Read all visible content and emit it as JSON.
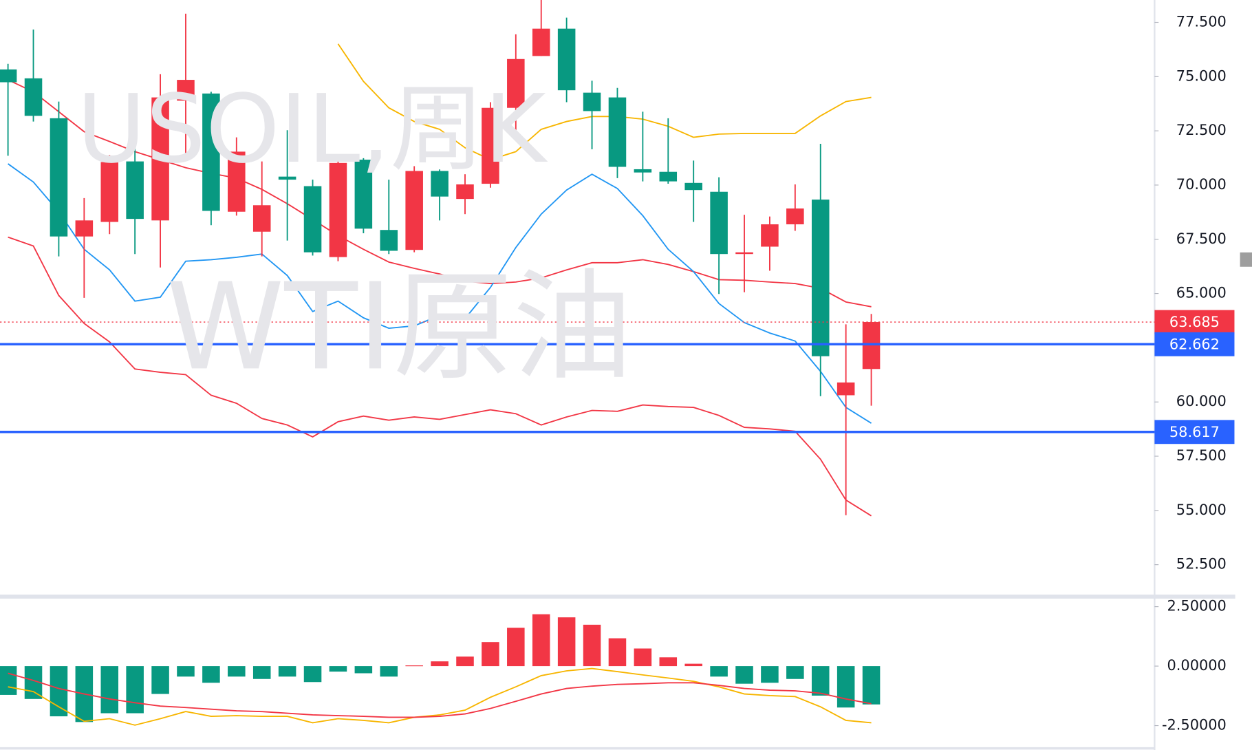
{
  "chart_data": [
    {
      "type": "candlestick",
      "watermark": [
        "USOIL,周K",
        "WTI原油"
      ],
      "open": [
        75.33,
        74.92,
        73.08,
        67.63,
        68.3,
        71.09,
        68.37,
        73.89,
        74.22,
        68.77,
        67.85,
        70.39,
        69.95,
        66.68,
        71.17,
        67.93,
        67.01,
        70.65,
        69.36,
        70.06,
        73.56,
        75.95,
        77.21,
        74.26,
        74.04,
        70.73,
        70.61,
        70.1,
        69.69,
        66.82,
        67.16,
        68.19,
        69.33,
        60.31,
        61.52
      ],
      "high": [
        75.59,
        77.17,
        73.85,
        69.4,
        71.39,
        72.2,
        75.11,
        77.9,
        74.3,
        72.2,
        71.09,
        72.53,
        70.25,
        71.35,
        71.24,
        70.25,
        70.87,
        70.72,
        70.5,
        73.82,
        76.95,
        78.53,
        77.72,
        74.81,
        74.48,
        73.38,
        73.08,
        71.13,
        70.36,
        68.63,
        68.55,
        70.03,
        71.9,
        63.58,
        64.06
      ],
      "low": [
        71.35,
        72.93,
        66.71,
        64.8,
        67.74,
        66.82,
        66.2,
        71.17,
        68.15,
        68.59,
        66.71,
        67.44,
        66.75,
        66.49,
        67.78,
        66.82,
        66.9,
        68.37,
        68.66,
        69.88,
        72.35,
        75.95,
        73.82,
        71.65,
        70.32,
        70.17,
        70.06,
        68.3,
        64.98,
        65.06,
        66.05,
        67.89,
        60.27,
        54.78,
        59.83
      ],
      "close": [
        74.74,
        73.19,
        67.63,
        68.37,
        71.06,
        68.44,
        74.04,
        74.85,
        68.81,
        71.54,
        69.07,
        70.25,
        66.9,
        71.02,
        67.99,
        66.97,
        70.65,
        69.47,
        70.03,
        73.56,
        75.81,
        77.21,
        74.37,
        73.41,
        70.84,
        70.58,
        70.17,
        69.77,
        66.82,
        66.9,
        68.19,
        68.92,
        62.11,
        60.9,
        63.685
      ],
      "up_color": "#f23645",
      "down_color": "#089981",
      "series": [
        {
          "color": "#f23645",
          "values": [
            74.85,
            74.3,
            73.38,
            72.46,
            72.01,
            71.54,
            71.17,
            70.8,
            70.54,
            70.32,
            69.8,
            69.14,
            68.41,
            67.67,
            67.04,
            66.45,
            66.16,
            65.9,
            65.57,
            65.46,
            65.53,
            65.72,
            66.09,
            66.42,
            66.42,
            66.56,
            66.34,
            66.01,
            65.64,
            65.61,
            65.53,
            65.46,
            65.24,
            64.61,
            64.39
          ]
        },
        {
          "color": "#f7b500",
          "values": [
            null,
            null,
            null,
            null,
            null,
            null,
            null,
            null,
            null,
            null,
            null,
            null,
            null,
            76.51,
            74.78,
            73.56,
            72.93,
            72.57,
            71.72,
            71.17,
            71.54,
            72.57,
            72.93,
            73.16,
            73.16,
            73.04,
            72.71,
            72.2,
            72.35,
            72.38,
            72.38,
            72.38,
            73.19,
            73.85,
            74.04
          ]
        },
        {
          "color": "#f23645",
          "values": [
            67.6,
            67.19,
            64.91,
            63.62,
            62.77,
            61.52,
            61.37,
            61.26,
            60.31,
            59.94,
            59.24,
            58.94,
            58.39,
            59.09,
            59.35,
            59.16,
            59.31,
            59.2,
            59.42,
            59.64,
            59.46,
            58.94,
            59.31,
            59.61,
            59.57,
            59.86,
            59.79,
            59.75,
            59.38,
            58.83,
            58.76,
            58.65,
            57.36,
            55.48,
            54.75
          ]
        },
        {
          "color": "#2196f3",
          "values": [
            70.98,
            70.14,
            68.77,
            67.04,
            66.09,
            64.65,
            64.83,
            66.49,
            66.56,
            66.67,
            66.82,
            65.83,
            64.17,
            64.65,
            63.88,
            63.4,
            63.51,
            63.99,
            63.84,
            65.28,
            67.12,
            68.66,
            69.77,
            70.5,
            69.84,
            68.59,
            67.04,
            66.01,
            64.54,
            63.66,
            63.18,
            62.81,
            61.41,
            59.75,
            59.02
          ]
        }
      ],
      "price_lines": [
        {
          "value": 63.685,
          "color": "#f23645",
          "style": "dotted"
        },
        {
          "value": 62.662,
          "color": "#2962ff",
          "style": "solid"
        },
        {
          "value": 58.617,
          "color": "#2962ff",
          "style": "solid"
        }
      ],
      "ylim": [
        51.1,
        78.53
      ],
      "yticks": [
        {
          "value": 77.5,
          "label": "77.500"
        },
        {
          "value": 75,
          "label": "75.000"
        },
        {
          "value": 72.5,
          "label": "72.500"
        },
        {
          "value": 70,
          "label": "70.000"
        },
        {
          "value": 67.5,
          "label": "67.500"
        },
        {
          "value": 65,
          "label": "65.000"
        },
        {
          "value": 60,
          "label": "60.000"
        },
        {
          "value": 57.5,
          "label": "57.500"
        },
        {
          "value": 55,
          "label": "55.000"
        },
        {
          "value": 52.5,
          "label": "52.500"
        }
      ]
    },
    {
      "type": "bar",
      "values": [
        -1.21,
        -1.38,
        -2.11,
        -2.35,
        -1.98,
        -1.98,
        -1.17,
        -0.44,
        -0.7,
        -0.44,
        -0.54,
        -0.44,
        -0.67,
        -0.23,
        -0.3,
        -0.44,
        0.03,
        0.2,
        0.4,
        1.01,
        1.61,
        2.18,
        2.05,
        1.74,
        1.17,
        0.74,
        0.37,
        0.1,
        -0.44,
        -0.74,
        -0.7,
        -0.54,
        -1.24,
        -1.74,
        -1.61
      ],
      "pos_color": "#f23645",
      "neg_color": "#089981",
      "series": [
        {
          "color": "#f7b500",
          "values": [
            -0.87,
            -1.07,
            -1.71,
            -2.32,
            -2.21,
            -2.48,
            -2.21,
            -1.91,
            -2.11,
            -2.08,
            -2.11,
            -2.11,
            -2.38,
            -2.21,
            -2.28,
            -2.38,
            -2.15,
            -2.05,
            -1.85,
            -1.31,
            -0.87,
            -0.4,
            -0.2,
            -0.1,
            -0.23,
            -0.37,
            -0.5,
            -0.64,
            -0.87,
            -1.17,
            -1.24,
            -1.28,
            -1.71,
            -2.28,
            -2.38
          ]
        },
        {
          "color": "#f23645",
          "values": [
            -0.3,
            -0.6,
            -0.94,
            -1.17,
            -1.38,
            -1.54,
            -1.68,
            -1.74,
            -1.81,
            -1.88,
            -1.91,
            -1.98,
            -2.05,
            -2.08,
            -2.11,
            -2.15,
            -2.15,
            -2.11,
            -2.01,
            -1.78,
            -1.48,
            -1.17,
            -0.94,
            -0.84,
            -0.77,
            -0.74,
            -0.7,
            -0.7,
            -0.81,
            -0.94,
            -1.01,
            -1.04,
            -1.14,
            -1.38,
            -1.58
          ]
        }
      ],
      "ylim": [
        -3.39,
        2.82
      ],
      "yticks": [
        {
          "value": 2.5,
          "label": "2.50000"
        },
        {
          "value": 0,
          "label": "0.00000"
        },
        {
          "value": -2.5,
          "label": "-2.50000"
        }
      ]
    }
  ]
}
